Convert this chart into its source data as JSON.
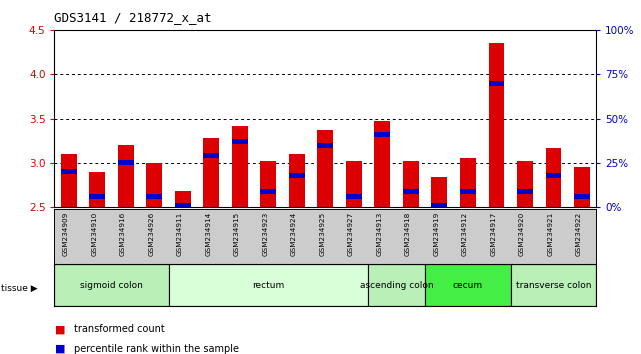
{
  "title": "GDS3141 / 218772_x_at",
  "samples": [
    "GSM234909",
    "GSM234910",
    "GSM234916",
    "GSM234926",
    "GSM234911",
    "GSM234914",
    "GSM234915",
    "GSM234923",
    "GSM234924",
    "GSM234925",
    "GSM234927",
    "GSM234913",
    "GSM234918",
    "GSM234919",
    "GSM234912",
    "GSM234917",
    "GSM234920",
    "GSM234921",
    "GSM234922"
  ],
  "red_values": [
    3.1,
    2.9,
    3.2,
    3.0,
    2.68,
    3.28,
    3.42,
    3.02,
    3.1,
    3.37,
    3.02,
    3.47,
    3.02,
    2.84,
    3.05,
    4.35,
    3.02,
    3.17,
    2.95
  ],
  "blue_values": [
    2.9,
    2.62,
    3.0,
    2.62,
    2.52,
    3.08,
    3.24,
    2.68,
    2.86,
    3.2,
    2.62,
    3.32,
    2.68,
    2.52,
    2.68,
    3.9,
    2.68,
    2.86,
    2.62
  ],
  "ymin": 2.5,
  "ymax": 4.5,
  "yticks": [
    2.5,
    3.0,
    3.5,
    4.0,
    4.5
  ],
  "y2ticks": [
    0,
    25,
    50,
    75,
    100
  ],
  "tissue_groups": [
    {
      "label": "sigmoid colon",
      "start": 0,
      "end": 4,
      "color": "#b8f0b8"
    },
    {
      "label": "rectum",
      "start": 4,
      "end": 11,
      "color": "#d8ffd8"
    },
    {
      "label": "ascending colon",
      "start": 11,
      "end": 13,
      "color": "#b8f0b8"
    },
    {
      "label": "cecum",
      "start": 13,
      "end": 16,
      "color": "#44ee44"
    },
    {
      "label": "transverse colon",
      "start": 16,
      "end": 19,
      "color": "#b8f0b8"
    }
  ],
  "bar_color": "#dd0000",
  "blue_color": "#0000cc",
  "bg_color": "#ffffff",
  "tick_area_color": "#cccccc",
  "grid_color": "#000000"
}
